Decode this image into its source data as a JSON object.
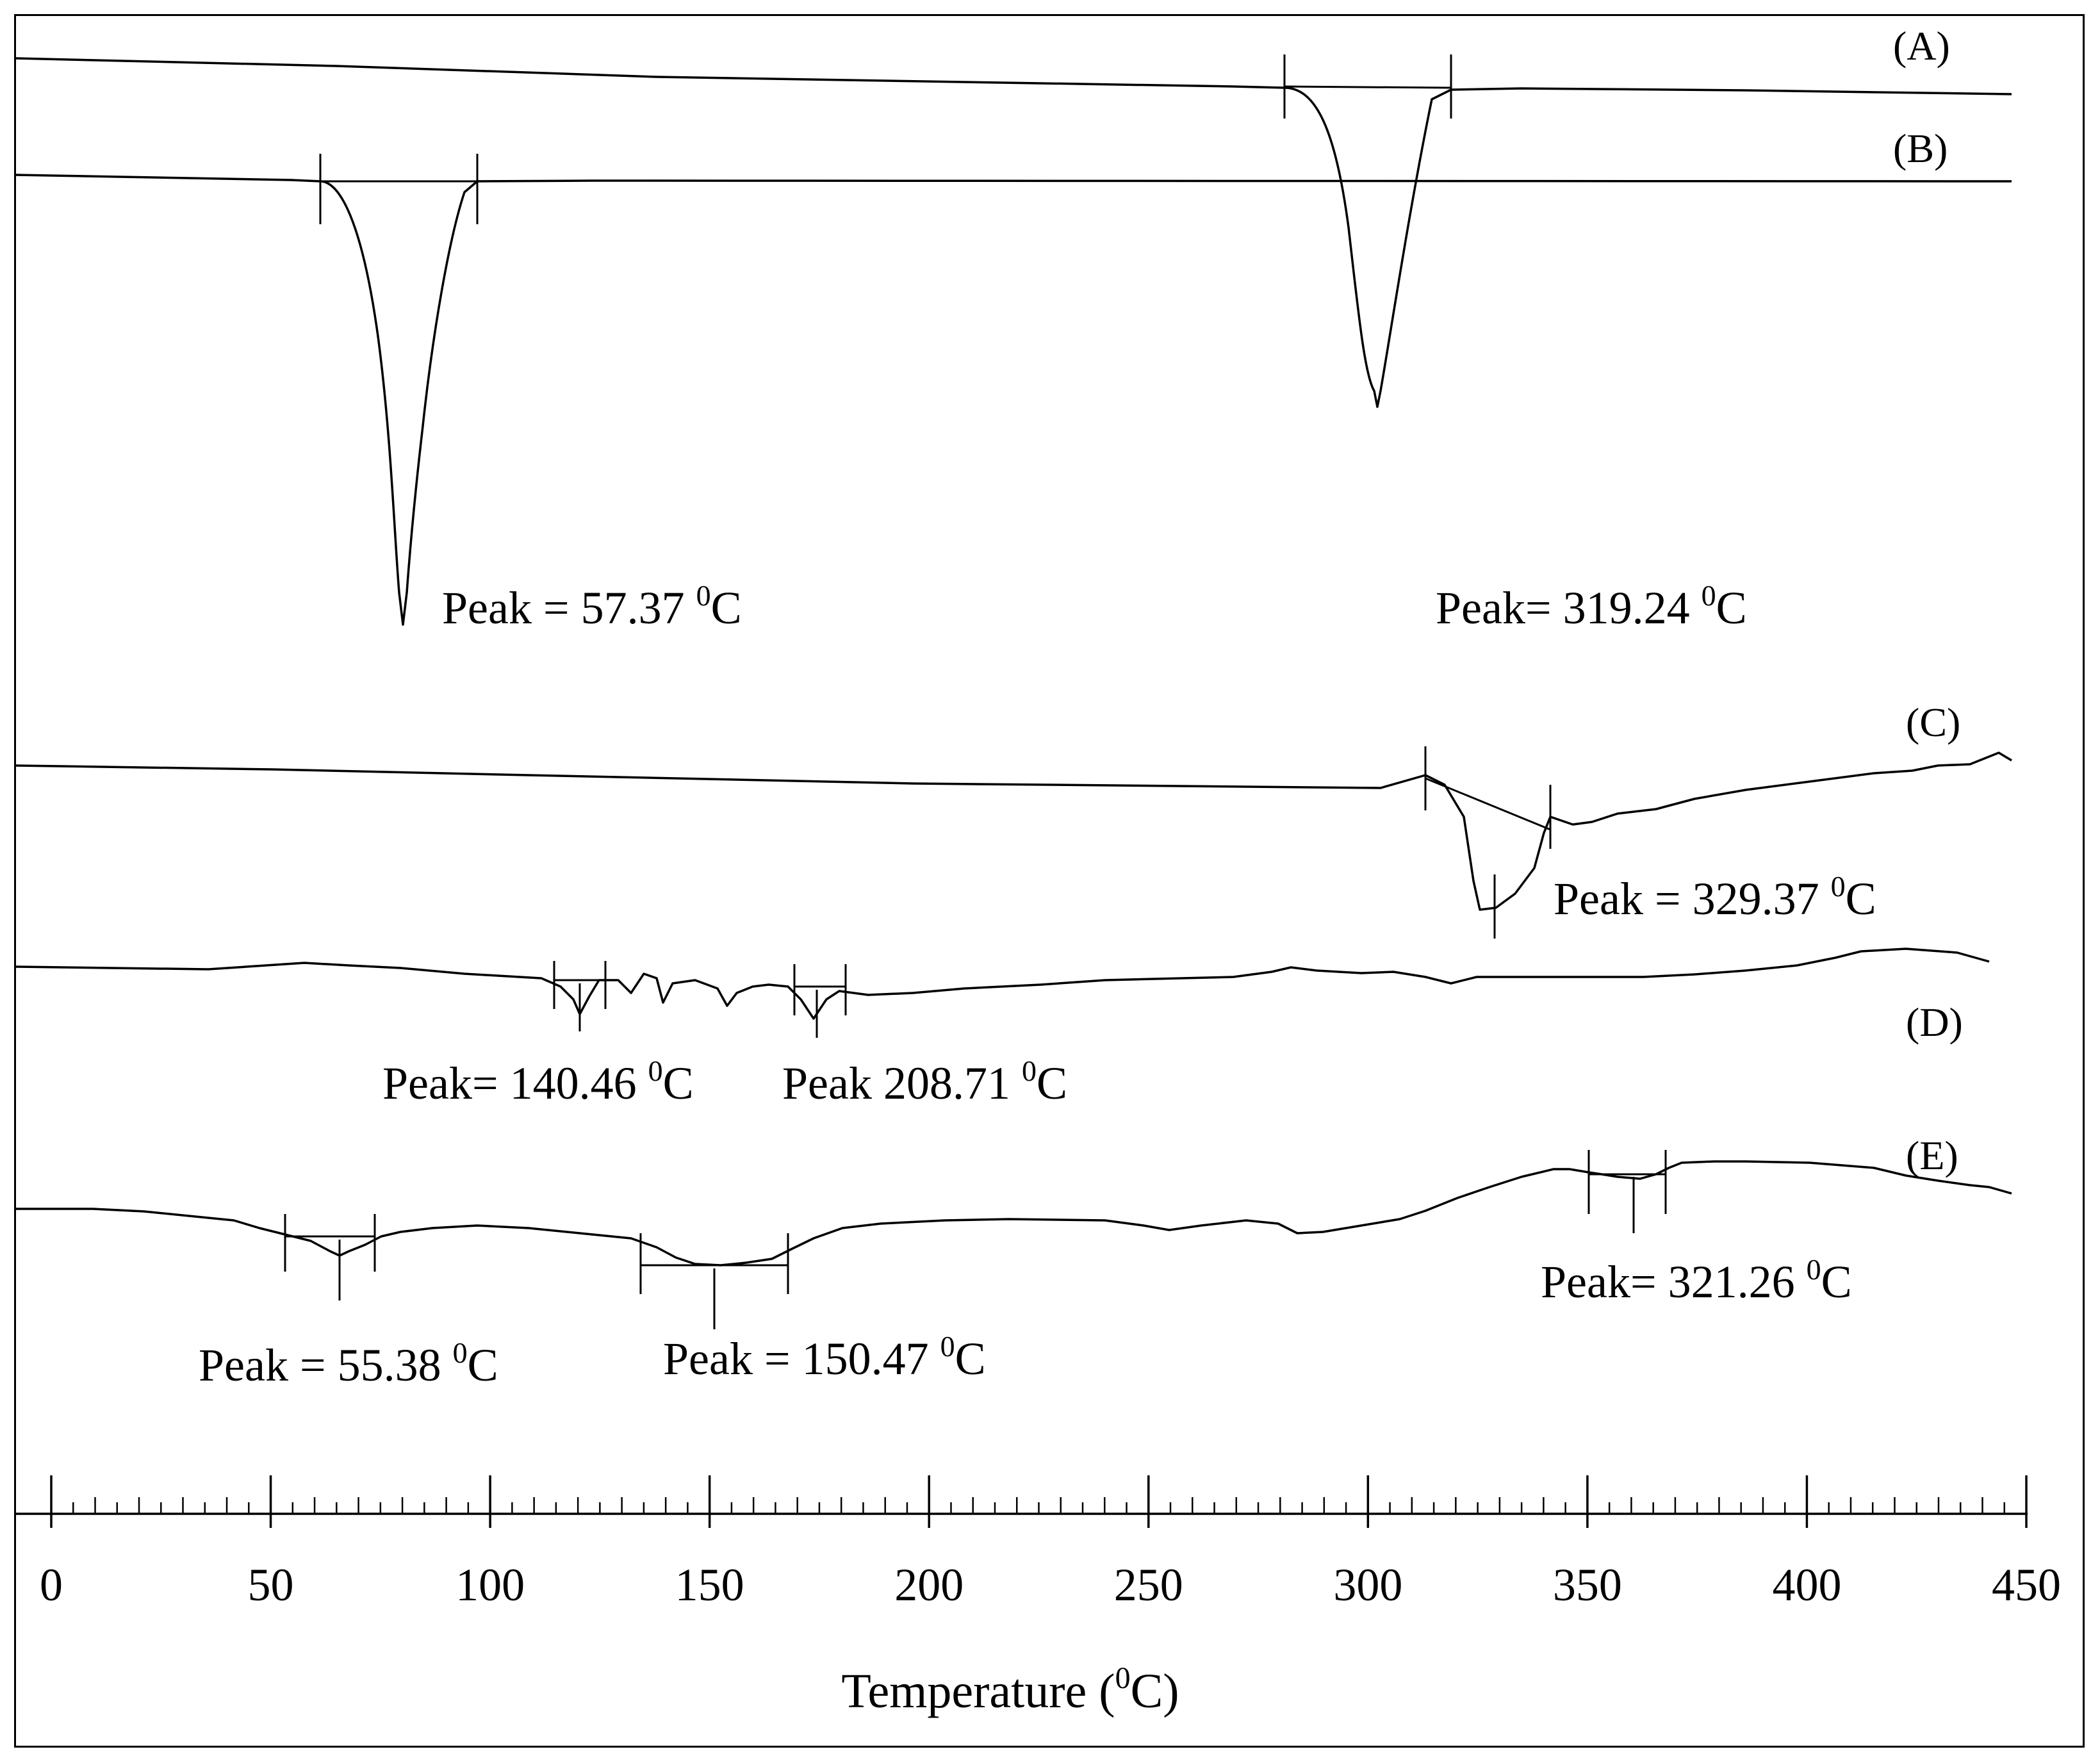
{
  "chart_data": {
    "type": "line",
    "title": "",
    "xlabel": "Temperature (",
    "xlabel_sup": "0",
    "xlabel_end": "C)",
    "xlim": [
      0,
      450
    ],
    "xticks": [
      0,
      50,
      100,
      150,
      200,
      250,
      300,
      350,
      400,
      450
    ],
    "ylabel": "",
    "grid": false,
    "series": [
      {
        "name": "(A)",
        "peaks": [
          {
            "x": 319.24,
            "label": "Peak= 319.24 ",
            "sup": "0",
            "unit": "C"
          }
        ]
      },
      {
        "name": "(B)",
        "peaks": [
          {
            "x": 57.37,
            "label": "Peak = 57.37 ",
            "sup": "0",
            "unit": "C"
          }
        ]
      },
      {
        "name": "(C)",
        "peaks": [
          {
            "x": 329.37,
            "label": "Peak = 329.37 ",
            "sup": "0",
            "unit": "C"
          }
        ]
      },
      {
        "name": "(D)",
        "peaks": [
          {
            "x": 140.46,
            "label": "Peak= 140.46 ",
            "sup": "0",
            "unit": "C"
          },
          {
            "x": 208.71,
            "label": "Peak 208.71 ",
            "sup": "0",
            "unit": "C"
          }
        ]
      },
      {
        "name": "(E)",
        "peaks": [
          {
            "x": 55.38,
            "label": "Peak = 55.38 ",
            "sup": "0",
            "unit": "C"
          },
          {
            "x": 150.47,
            "label": "Peak = 150.47 ",
            "sup": "0",
            "unit": "C"
          },
          {
            "x": 321.26,
            "label": "Peak= 321.26 ",
            "sup": "0",
            "unit": "C"
          }
        ]
      }
    ]
  }
}
